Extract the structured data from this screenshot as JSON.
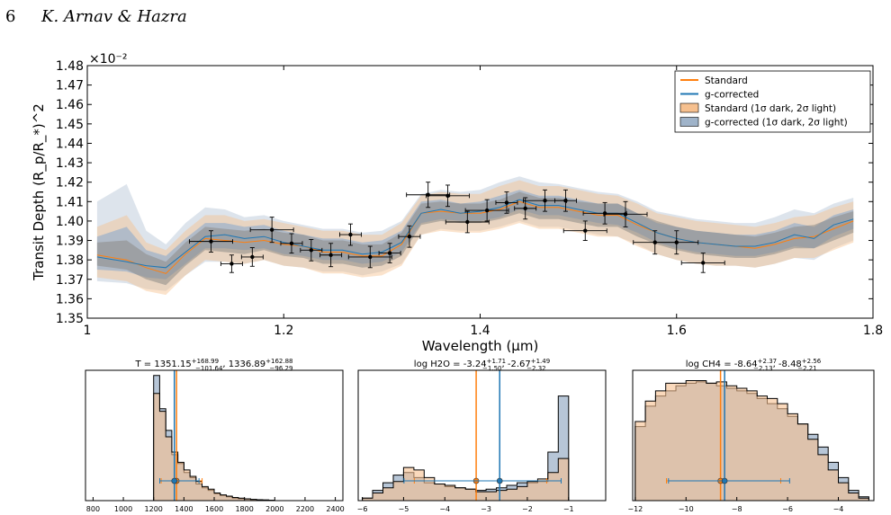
{
  "header": {
    "page_number": "6",
    "running_head": "K. Arnav & Hazra"
  },
  "colors": {
    "standard": "#ff7f0e",
    "gcorrected": "#1f77b4",
    "std_band": "#f6c08f",
    "gc_band": "#9fb3c9"
  },
  "chart_data": [
    {
      "type": "line",
      "xlabel": "Wavelength (μm)",
      "ylabel": "Transit Depth (R_p/R_*)^2",
      "y_multiplier": "×10⁻²",
      "xlim": [
        1.0,
        1.8
      ],
      "ylim": [
        1.35,
        1.48
      ],
      "xticks": [
        1.0,
        1.2,
        1.4,
        1.6,
        1.8
      ],
      "xtick_labels": [
        "1",
        "1.2",
        "1.4",
        "1.6",
        "1.8"
      ],
      "yticks": [
        1.35,
        1.36,
        1.37,
        1.38,
        1.39,
        1.4,
        1.41,
        1.42,
        1.43,
        1.44,
        1.45,
        1.46,
        1.47,
        1.48
      ],
      "ytick_labels": [
        "1.35",
        "1.36",
        "1.37",
        "1.38",
        "1.39",
        "1.40",
        "1.41",
        "1.42",
        "1.43",
        "1.44",
        "1.45",
        "1.46",
        "1.47",
        "1.48"
      ],
      "legend": {
        "position": "top-right",
        "entries": [
          "Standard",
          "g-corrected",
          "Standard (1σ dark, 2σ light)",
          "g-corrected (1σ dark, 2σ light)"
        ]
      },
      "model_x": [
        1.01,
        1.04,
        1.06,
        1.08,
        1.1,
        1.12,
        1.14,
        1.16,
        1.18,
        1.2,
        1.22,
        1.24,
        1.26,
        1.28,
        1.3,
        1.32,
        1.34,
        1.36,
        1.38,
        1.4,
        1.42,
        1.44,
        1.46,
        1.48,
        1.5,
        1.52,
        1.54,
        1.56,
        1.58,
        1.6,
        1.62,
        1.64,
        1.66,
        1.68,
        1.7,
        1.72,
        1.74,
        1.76,
        1.78
      ],
      "series": [
        {
          "name": "Standard",
          "values": [
            1.3825,
            1.38,
            1.376,
            1.373,
            1.383,
            1.391,
            1.39,
            1.389,
            1.39,
            1.388,
            1.387,
            1.384,
            1.384,
            1.382,
            1.382,
            1.388,
            1.404,
            1.405,
            1.404,
            1.404,
            1.406,
            1.41,
            1.407,
            1.407,
            1.405,
            1.403,
            1.403,
            1.398,
            1.394,
            1.391,
            1.389,
            1.388,
            1.387,
            1.386,
            1.388,
            1.391,
            1.392,
            1.396,
            1.4
          ]
        },
        {
          "name": "g-corrected",
          "values": [
            1.3815,
            1.379,
            1.377,
            1.376,
            1.384,
            1.392,
            1.393,
            1.391,
            1.392,
            1.389,
            1.387,
            1.385,
            1.385,
            1.383,
            1.384,
            1.389,
            1.404,
            1.406,
            1.404,
            1.405,
            1.407,
            1.411,
            1.408,
            1.408,
            1.406,
            1.404,
            1.404,
            1.399,
            1.394,
            1.391,
            1.389,
            1.388,
            1.387,
            1.387,
            1.389,
            1.393,
            1.391,
            1.398,
            1.401
          ]
        }
      ],
      "band_gc_2sigma": {
        "lo": [
          1.369,
          1.368,
          1.365,
          1.364,
          1.372,
          1.379,
          1.379,
          1.378,
          1.38,
          1.377,
          1.376,
          1.374,
          1.374,
          1.372,
          1.374,
          1.378,
          1.393,
          1.396,
          1.395,
          1.395,
          1.397,
          1.4,
          1.397,
          1.397,
          1.395,
          1.393,
          1.392,
          1.388,
          1.383,
          1.38,
          1.378,
          1.377,
          1.377,
          1.376,
          1.378,
          1.381,
          1.38,
          1.386,
          1.39
        ],
        "hi": [
          1.41,
          1.419,
          1.395,
          1.388,
          1.399,
          1.407,
          1.406,
          1.402,
          1.403,
          1.4,
          1.398,
          1.396,
          1.396,
          1.394,
          1.395,
          1.4,
          1.414,
          1.416,
          1.415,
          1.416,
          1.42,
          1.423,
          1.42,
          1.419,
          1.417,
          1.415,
          1.414,
          1.41,
          1.405,
          1.403,
          1.401,
          1.4,
          1.399,
          1.399,
          1.402,
          1.406,
          1.404,
          1.409,
          1.412
        ]
      },
      "band_gc_1sigma": {
        "lo": [
          1.375,
          1.374,
          1.371,
          1.37,
          1.378,
          1.386,
          1.386,
          1.385,
          1.386,
          1.383,
          1.382,
          1.38,
          1.38,
          1.378,
          1.379,
          1.384,
          1.399,
          1.401,
          1.4,
          1.4,
          1.402,
          1.406,
          1.403,
          1.403,
          1.401,
          1.399,
          1.398,
          1.394,
          1.389,
          1.386,
          1.384,
          1.383,
          1.382,
          1.382,
          1.384,
          1.387,
          1.386,
          1.392,
          1.396
        ],
        "hi": [
          1.392,
          1.397,
          1.385,
          1.382,
          1.391,
          1.399,
          1.399,
          1.397,
          1.398,
          1.395,
          1.393,
          1.391,
          1.391,
          1.389,
          1.39,
          1.395,
          1.41,
          1.411,
          1.409,
          1.41,
          1.413,
          1.416,
          1.413,
          1.413,
          1.411,
          1.409,
          1.409,
          1.404,
          1.399,
          1.397,
          1.395,
          1.394,
          1.393,
          1.393,
          1.395,
          1.399,
          1.397,
          1.403,
          1.406
        ]
      },
      "band_std_2sigma": {
        "lo": [
          1.371,
          1.369,
          1.364,
          1.362,
          1.372,
          1.38,
          1.379,
          1.378,
          1.38,
          1.377,
          1.376,
          1.373,
          1.373,
          1.371,
          1.372,
          1.377,
          1.393,
          1.395,
          1.394,
          1.394,
          1.396,
          1.399,
          1.396,
          1.396,
          1.394,
          1.392,
          1.392,
          1.387,
          1.383,
          1.38,
          1.378,
          1.377,
          1.377,
          1.376,
          1.378,
          1.381,
          1.381,
          1.385,
          1.389
        ],
        "hi": [
          1.397,
          1.403,
          1.389,
          1.385,
          1.395,
          1.403,
          1.403,
          1.4,
          1.401,
          1.399,
          1.397,
          1.395,
          1.395,
          1.393,
          1.393,
          1.399,
          1.413,
          1.415,
          1.414,
          1.414,
          1.418,
          1.421,
          1.418,
          1.418,
          1.416,
          1.414,
          1.413,
          1.409,
          1.404,
          1.402,
          1.4,
          1.399,
          1.398,
          1.397,
          1.399,
          1.402,
          1.403,
          1.407,
          1.41
        ]
      },
      "band_std_1sigma": {
        "lo": [
          1.377,
          1.375,
          1.37,
          1.367,
          1.377,
          1.385,
          1.384,
          1.383,
          1.385,
          1.382,
          1.381,
          1.378,
          1.378,
          1.376,
          1.377,
          1.382,
          1.398,
          1.4,
          1.399,
          1.399,
          1.401,
          1.404,
          1.401,
          1.401,
          1.399,
          1.397,
          1.397,
          1.392,
          1.388,
          1.385,
          1.383,
          1.382,
          1.381,
          1.381,
          1.383,
          1.386,
          1.386,
          1.39,
          1.394
        ],
        "hi": [
          1.389,
          1.39,
          1.383,
          1.379,
          1.389,
          1.397,
          1.396,
          1.395,
          1.396,
          1.394,
          1.393,
          1.39,
          1.39,
          1.388,
          1.388,
          1.394,
          1.409,
          1.41,
          1.409,
          1.409,
          1.411,
          1.415,
          1.412,
          1.412,
          1.41,
          1.409,
          1.409,
          1.404,
          1.4,
          1.397,
          1.395,
          1.394,
          1.393,
          1.392,
          1.394,
          1.397,
          1.398,
          1.402,
          1.405
        ]
      },
      "observations": [
        {
          "x": 1.126,
          "y": 1.3895,
          "xerr": 0.022,
          "yerr": 0.0055
        },
        {
          "x": 1.147,
          "y": 1.378,
          "xerr": 0.011,
          "yerr": 0.0045
        },
        {
          "x": 1.168,
          "y": 1.3815,
          "xerr": 0.011,
          "yerr": 0.0048
        },
        {
          "x": 1.188,
          "y": 1.3955,
          "xerr": 0.022,
          "yerr": 0.0065
        },
        {
          "x": 1.208,
          "y": 1.3885,
          "xerr": 0.011,
          "yerr": 0.005
        },
        {
          "x": 1.228,
          "y": 1.385,
          "xerr": 0.011,
          "yerr": 0.0055
        },
        {
          "x": 1.248,
          "y": 1.3825,
          "xerr": 0.011,
          "yerr": 0.006
        },
        {
          "x": 1.268,
          "y": 1.393,
          "xerr": 0.011,
          "yerr": 0.0055
        },
        {
          "x": 1.288,
          "y": 1.3815,
          "xerr": 0.022,
          "yerr": 0.0055
        },
        {
          "x": 1.308,
          "y": 1.3835,
          "xerr": 0.011,
          "yerr": 0.005
        },
        {
          "x": 1.328,
          "y": 1.392,
          "xerr": 0.011,
          "yerr": 0.0055
        },
        {
          "x": 1.347,
          "y": 1.4135,
          "xerr": 0.022,
          "yerr": 0.0065
        },
        {
          "x": 1.367,
          "y": 1.413,
          "xerr": 0.022,
          "yerr": 0.0055
        },
        {
          "x": 1.387,
          "y": 1.3995,
          "xerr": 0.022,
          "yerr": 0.0055
        },
        {
          "x": 1.407,
          "y": 1.4055,
          "xerr": 0.022,
          "yerr": 0.0055
        },
        {
          "x": 1.427,
          "y": 1.4095,
          "xerr": 0.011,
          "yerr": 0.0055
        },
        {
          "x": 1.446,
          "y": 1.4065,
          "xerr": 0.011,
          "yerr": 0.0055
        },
        {
          "x": 1.466,
          "y": 1.4105,
          "xerr": 0.022,
          "yerr": 0.0055
        },
        {
          "x": 1.487,
          "y": 1.4105,
          "xerr": 0.011,
          "yerr": 0.0055
        },
        {
          "x": 1.507,
          "y": 1.395,
          "xerr": 0.022,
          "yerr": 0.005
        },
        {
          "x": 1.527,
          "y": 1.404,
          "xerr": 0.022,
          "yerr": 0.0055
        },
        {
          "x": 1.548,
          "y": 1.4035,
          "xerr": 0.022,
          "yerr": 0.0065
        },
        {
          "x": 1.578,
          "y": 1.389,
          "xerr": 0.022,
          "yerr": 0.006
        },
        {
          "x": 1.6,
          "y": 1.389,
          "xerr": 0.022,
          "yerr": 0.006
        },
        {
          "x": 1.627,
          "y": 1.3785,
          "xerr": 0.022,
          "yerr": 0.005
        }
      ]
    },
    {
      "type": "histogram",
      "title": "T = 1351.15+168.99−101.64, 1336.89+162.88−96.29",
      "title_parts": {
        "prefix": "T = ",
        "v1": "1351.15",
        "sup1": "+168.99",
        "sub1": "−101.64",
        "sep": ", ",
        "v2": "1336.89",
        "sup2": "+162.88",
        "sub2": "−96.29"
      },
      "xlim": [
        750,
        2450
      ],
      "xticks": [
        800,
        1000,
        1200,
        1400,
        1600,
        1800,
        2000,
        2200,
        2400
      ],
      "xtick_labels": [
        "800",
        "1000",
        "1200",
        "1400",
        "1600",
        "1800",
        "2000",
        "2200",
        "2400"
      ],
      "bin_edges": [
        1200,
        1240,
        1280,
        1320,
        1360,
        1400,
        1440,
        1480,
        1520,
        1560,
        1600,
        1640,
        1680,
        1720,
        1760,
        1800,
        1840,
        1880,
        1920,
        1960,
        2000
      ],
      "standard": [
        0.84,
        0.7,
        0.5,
        0.38,
        0.3,
        0.24,
        0.19,
        0.15,
        0.11,
        0.09,
        0.06,
        0.045,
        0.035,
        0.025,
        0.02,
        0.014,
        0.01,
        0.007,
        0.005,
        0.003
      ],
      "gcorrected": [
        0.98,
        0.72,
        0.55,
        0.36,
        0.29,
        0.22,
        0.18,
        0.13,
        0.1,
        0.08,
        0.055,
        0.04,
        0.03,
        0.02,
        0.015,
        0.012,
        0.008,
        0.006,
        0.004,
        0.003
      ],
      "marker_std": {
        "value": 1351.15,
        "plus": 168.99,
        "minus": 101.64
      },
      "marker_gc": {
        "value": 1336.89,
        "plus": 162.88,
        "minus": 96.29
      }
    },
    {
      "type": "histogram",
      "title": "log H2O = -3.24+1.71−1.50, -2.67+1.49−2.32",
      "title_parts": {
        "prefix": "log H2O = ",
        "v1": "-3.24",
        "sup1": "+1.71",
        "sub1": "−1.50",
        "sep": ", ",
        "v2": "-2.67",
        "sup2": "+1.49",
        "sub2": "−2.32"
      },
      "xlim": [
        -6.1,
        -0.1
      ],
      "xticks": [
        -6,
        -5,
        -4,
        -3,
        -2,
        -1
      ],
      "xtick_labels": [
        "−6",
        "−5",
        "−4",
        "−3",
        "−2",
        "−1"
      ],
      "bin_edges": [
        -6.0,
        -5.75,
        -5.5,
        -5.25,
        -5.0,
        -4.75,
        -4.5,
        -4.25,
        -4.0,
        -3.75,
        -3.5,
        -3.25,
        -3.0,
        -2.75,
        -2.5,
        -2.25,
        -2.0,
        -1.75,
        -1.5,
        -1.25,
        -1.0
      ],
      "standard": [
        0.02,
        0.06,
        0.1,
        0.15,
        0.26,
        0.24,
        0.18,
        0.13,
        0.12,
        0.1,
        0.09,
        0.07,
        0.07,
        0.08,
        0.09,
        0.11,
        0.15,
        0.17,
        0.22,
        0.33
      ],
      "gcorrected": [
        0.02,
        0.08,
        0.14,
        0.2,
        0.22,
        0.18,
        0.14,
        0.13,
        0.11,
        0.1,
        0.09,
        0.08,
        0.09,
        0.1,
        0.12,
        0.14,
        0.14,
        0.15,
        0.38,
        0.82
      ],
      "marker_std": {
        "value": -3.24,
        "plus": 1.71,
        "minus": 1.5
      },
      "marker_gc": {
        "value": -2.67,
        "plus": 1.49,
        "minus": 2.32
      }
    },
    {
      "type": "histogram",
      "title": "log CH4 = -8.64+2.37−2.13, -8.48+2.56−2.21",
      "title_parts": {
        "prefix": "log CH4 = ",
        "v1": "-8.64",
        "sup1": "+2.37",
        "sub1": "−2.13",
        "sep": ", ",
        "v2": "-8.48",
        "sup2": "+2.56",
        "sub2": "−2.21"
      },
      "xlim": [
        -12.1,
        -2.6
      ],
      "xticks": [
        -12,
        -10,
        -8,
        -6,
        -4
      ],
      "xtick_labels": [
        "−12",
        "−10",
        "−8",
        "−6",
        "−4"
      ],
      "bin_edges": [
        -12.0,
        -11.6,
        -11.2,
        -10.8,
        -10.4,
        -10.0,
        -9.6,
        -9.2,
        -8.8,
        -8.4,
        -8.0,
        -7.6,
        -7.2,
        -6.8,
        -6.4,
        -6.0,
        -5.6,
        -5.2,
        -4.8,
        -4.4,
        -4.0,
        -3.6,
        -3.2,
        -2.8
      ],
      "standard": [
        0.62,
        0.78,
        0.86,
        0.92,
        0.92,
        0.94,
        0.94,
        0.92,
        0.93,
        0.9,
        0.88,
        0.86,
        0.82,
        0.8,
        0.76,
        0.68,
        0.6,
        0.48,
        0.36,
        0.24,
        0.14,
        0.06,
        0.02
      ],
      "gcorrected": [
        0.58,
        0.74,
        0.82,
        0.86,
        0.9,
        0.92,
        0.93,
        0.92,
        0.9,
        0.88,
        0.86,
        0.84,
        0.8,
        0.76,
        0.72,
        0.66,
        0.6,
        0.52,
        0.42,
        0.3,
        0.18,
        0.08,
        0.03
      ],
      "marker_std": {
        "value": -8.64,
        "plus": 2.37,
        "minus": 2.13
      },
      "marker_gc": {
        "value": -8.48,
        "plus": 2.56,
        "minus": 2.21
      }
    }
  ]
}
